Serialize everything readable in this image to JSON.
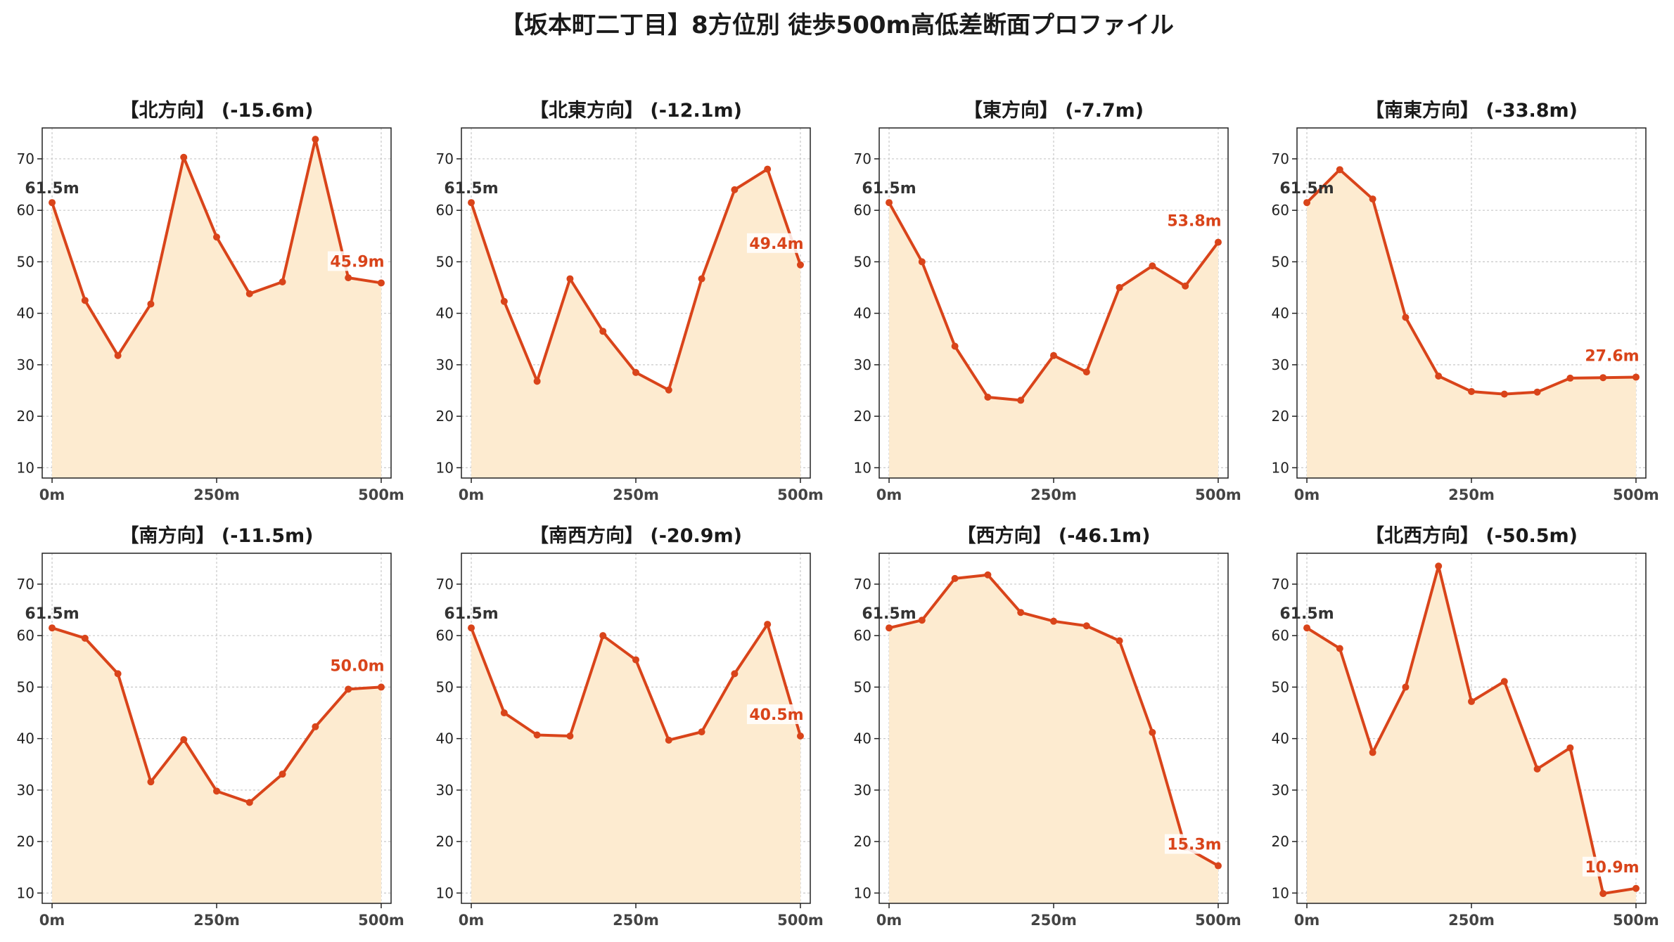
{
  "title": "【坂本町二丁目】8方位別 徒歩500m高低差断面プロファイル",
  "colors": {
    "line": "#d9441a",
    "fill": "#fdebd0",
    "start_label": "#333333",
    "end_label": "#d9441a",
    "grid": "#c8c8c8",
    "axis": "#222222"
  },
  "chart_data": [
    {
      "type": "area",
      "title": "【北方向】 (-15.6m)",
      "x": [
        0,
        50,
        100,
        150,
        200,
        250,
        300,
        350,
        400,
        450,
        500
      ],
      "y": [
        61.5,
        42.5,
        31.8,
        41.8,
        70.3,
        54.8,
        43.8,
        46.1,
        73.8,
        46.9,
        45.9
      ],
      "start_label": "61.5m",
      "end_label": "45.9m",
      "xticks": [
        "0m",
        "250m",
        "500m"
      ],
      "yticks": [
        10,
        20,
        30,
        40,
        50,
        60,
        70
      ],
      "ylim": [
        8,
        76
      ],
      "grid": true
    },
    {
      "type": "area",
      "title": "【北東方向】 (-12.1m)",
      "x": [
        0,
        50,
        100,
        150,
        200,
        250,
        300,
        350,
        400,
        450,
        500
      ],
      "y": [
        61.5,
        42.3,
        26.8,
        46.7,
        36.5,
        28.5,
        25.1,
        46.7,
        64.0,
        68.0,
        49.4
      ],
      "start_label": "61.5m",
      "end_label": "49.4m",
      "xticks": [
        "0m",
        "250m",
        "500m"
      ],
      "yticks": [
        10,
        20,
        30,
        40,
        50,
        60,
        70
      ],
      "ylim": [
        8,
        76
      ],
      "grid": true
    },
    {
      "type": "area",
      "title": "【東方向】 (-7.7m)",
      "x": [
        0,
        50,
        100,
        150,
        200,
        250,
        300,
        350,
        400,
        450,
        500
      ],
      "y": [
        61.5,
        50.0,
        33.6,
        23.7,
        23.1,
        31.8,
        28.6,
        45.0,
        49.2,
        45.3,
        53.8
      ],
      "start_label": "61.5m",
      "end_label": "53.8m",
      "xticks": [
        "0m",
        "250m",
        "500m"
      ],
      "yticks": [
        10,
        20,
        30,
        40,
        50,
        60,
        70
      ],
      "ylim": [
        8,
        76
      ],
      "grid": true
    },
    {
      "type": "area",
      "title": "【南東方向】 (-33.8m)",
      "x": [
        0,
        50,
        100,
        150,
        200,
        250,
        300,
        350,
        400,
        450,
        500
      ],
      "y": [
        61.5,
        67.9,
        62.2,
        39.2,
        27.8,
        24.8,
        24.3,
        24.7,
        27.4,
        27.5,
        27.6
      ],
      "start_label": "61.5m",
      "end_label": "27.6m",
      "xticks": [
        "0m",
        "250m",
        "500m"
      ],
      "yticks": [
        10,
        20,
        30,
        40,
        50,
        60,
        70
      ],
      "ylim": [
        8,
        76
      ],
      "grid": true
    },
    {
      "type": "area",
      "title": "【南方向】 (-11.5m)",
      "x": [
        0,
        50,
        100,
        150,
        200,
        250,
        300,
        350,
        400,
        450,
        500
      ],
      "y": [
        61.5,
        59.5,
        52.6,
        31.6,
        39.8,
        29.8,
        27.6,
        33.1,
        42.3,
        49.6,
        50.0
      ],
      "start_label": "61.5m",
      "end_label": "50.0m",
      "xticks": [
        "0m",
        "250m",
        "500m"
      ],
      "yticks": [
        10,
        20,
        30,
        40,
        50,
        60,
        70
      ],
      "ylim": [
        8,
        76
      ],
      "grid": true
    },
    {
      "type": "area",
      "title": "【南西方向】 (-20.9m)",
      "x": [
        0,
        50,
        100,
        150,
        200,
        250,
        300,
        350,
        400,
        450,
        500
      ],
      "y": [
        61.5,
        45.0,
        40.7,
        40.5,
        60.0,
        55.3,
        39.7,
        41.3,
        52.6,
        62.2,
        40.5
      ],
      "start_label": "61.5m",
      "end_label": "40.5m",
      "xticks": [
        "0m",
        "250m",
        "500m"
      ],
      "yticks": [
        10,
        20,
        30,
        40,
        50,
        60,
        70
      ],
      "ylim": [
        8,
        76
      ],
      "grid": true
    },
    {
      "type": "area",
      "title": "【西方向】 (-46.1m)",
      "x": [
        0,
        50,
        100,
        150,
        200,
        250,
        300,
        350,
        400,
        450,
        500
      ],
      "y": [
        61.5,
        63.0,
        71.1,
        71.8,
        64.5,
        62.8,
        61.9,
        59.0,
        41.2,
        18.9,
        15.3
      ],
      "start_label": "61.5m",
      "end_label": "15.3m",
      "xticks": [
        "0m",
        "250m",
        "500m"
      ],
      "yticks": [
        10,
        20,
        30,
        40,
        50,
        60,
        70
      ],
      "ylim": [
        8,
        76
      ],
      "grid": true
    },
    {
      "type": "area",
      "title": "【北西方向】 (-50.5m)",
      "x": [
        0,
        50,
        100,
        150,
        200,
        250,
        300,
        350,
        400,
        450,
        500
      ],
      "y": [
        61.5,
        57.5,
        37.3,
        50.0,
        73.5,
        47.2,
        51.1,
        34.1,
        38.2,
        9.9,
        10.9
      ],
      "start_label": "61.5m",
      "end_label": "10.9m",
      "xticks": [
        "0m",
        "250m",
        "500m"
      ],
      "yticks": [
        10,
        20,
        30,
        40,
        50,
        60,
        70
      ],
      "ylim": [
        8,
        76
      ],
      "grid": true
    }
  ]
}
